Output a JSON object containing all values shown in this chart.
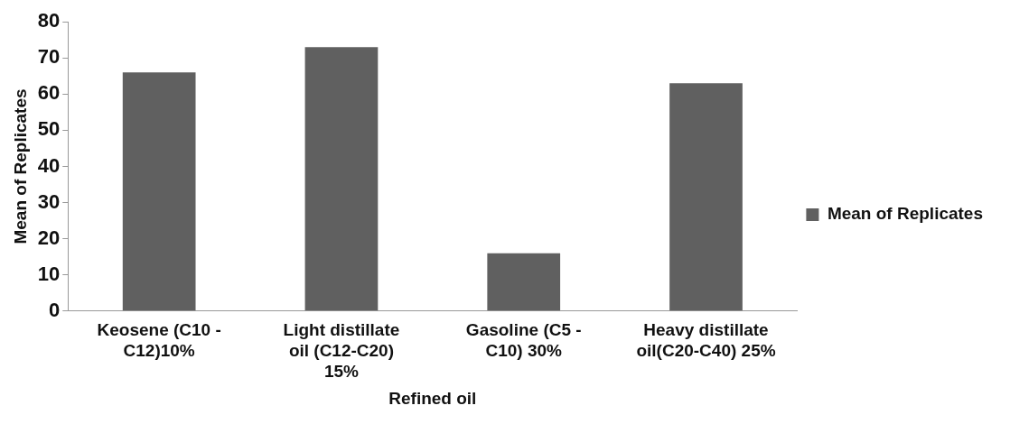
{
  "chart_data": {
    "type": "bar",
    "xlabel": "Refined oil",
    "ylabel": "Mean of Replicates",
    "categories": [
      "Keosene (C10 - C12)10%",
      "Light distillate oil (C12-C20) 15%",
      "Gasoline (C5 - C10) 30%",
      "Heavy distillate oil(C20-C40) 25%"
    ],
    "series": [
      {
        "name": "Mean of Replicates",
        "color": "#606060",
        "values": [
          66,
          73,
          16,
          63
        ]
      }
    ],
    "ylim": [
      0,
      80
    ],
    "yticks": [
      0,
      10,
      20,
      30,
      40,
      50,
      60,
      70,
      80
    ],
    "grid": false,
    "legend": "right"
  }
}
